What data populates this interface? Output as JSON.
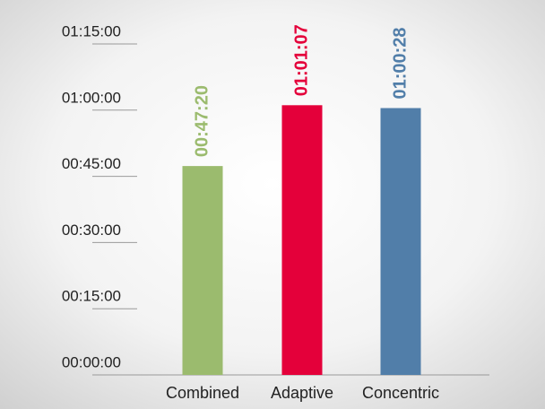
{
  "chart_data": {
    "type": "bar",
    "categories": [
      "Combined",
      "Adaptive",
      "Concentric"
    ],
    "values": [
      2840,
      3667,
      3628
    ],
    "value_labels": [
      "00:47:20",
      "01:01:07",
      "01:00:28"
    ],
    "colors": [
      "#9bbb6e",
      "#e4003a",
      "#517ea9"
    ],
    "ylim": [
      0,
      4500
    ],
    "yticks": [
      {
        "value": 0,
        "label": "00:00:00"
      },
      {
        "value": 900,
        "label": "00:15:00"
      },
      {
        "value": 1800,
        "label": "00:30:00"
      },
      {
        "value": 2700,
        "label": "00:45:00"
      },
      {
        "value": 3600,
        "label": "01:00:00"
      },
      {
        "value": 4500,
        "label": "01:15:00"
      }
    ]
  }
}
